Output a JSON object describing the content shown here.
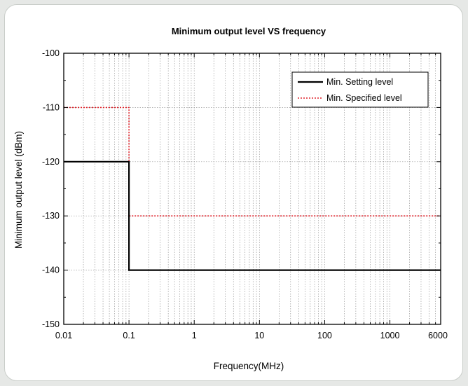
{
  "chart_data": {
    "type": "line",
    "title": "Minimum output level VS frequency",
    "xlabel": "Frequency(MHz)",
    "ylabel": "Minimum output level (dBm)",
    "x_scale": "log",
    "xlim": [
      0.01,
      6000
    ],
    "ylim": [
      -150,
      -100
    ],
    "x_ticks": [
      0.01,
      0.1,
      1,
      10,
      100,
      1000,
      6000
    ],
    "x_tick_labels": [
      "0.01",
      "0.1",
      "1",
      "10",
      "100",
      "1000",
      "6000"
    ],
    "y_ticks": [
      -150,
      -140,
      -130,
      -120,
      -110,
      -100
    ],
    "y_tick_labels": [
      "-150",
      "-140",
      "-130",
      "-120",
      "-110",
      "-100"
    ],
    "grid": true,
    "legend_position": "top-right",
    "series": [
      {
        "name": "Min. Setting level",
        "color": "#000000",
        "style": "solid",
        "x": [
          0.01,
          0.1,
          0.1,
          6000
        ],
        "y": [
          -120,
          -120,
          -140,
          -140
        ]
      },
      {
        "name": "Min. Specified level",
        "color": "#e0242c",
        "style": "dotted",
        "x": [
          0.01,
          0.1,
          0.1,
          6000
        ],
        "y": [
          -110,
          -110,
          -130,
          -130
        ]
      }
    ]
  }
}
